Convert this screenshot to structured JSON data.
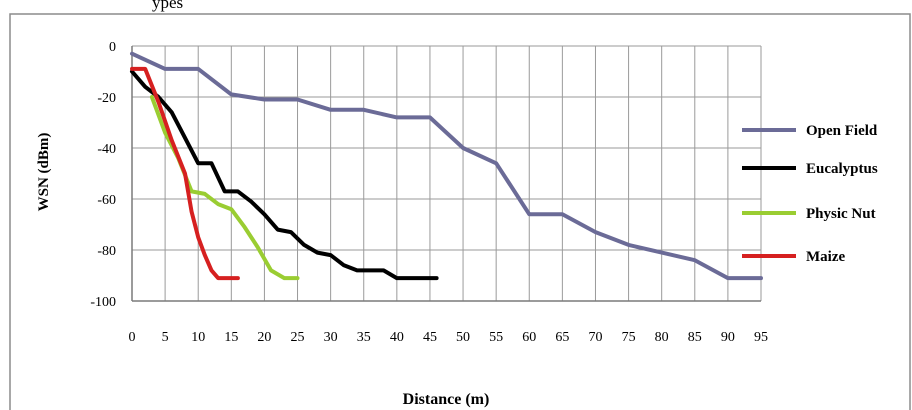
{
  "top_caption": "ypes",
  "chart_data": {
    "type": "line",
    "title": "",
    "xlabel": "Distance (m)",
    "ylabel": "WSN (dBm)",
    "xlim": [
      0,
      95
    ],
    "ylim": [
      -100,
      0
    ],
    "x_ticks": [
      0,
      5,
      10,
      15,
      20,
      25,
      30,
      35,
      40,
      45,
      50,
      55,
      60,
      65,
      70,
      75,
      80,
      85,
      90,
      95
    ],
    "y_ticks": [
      0,
      -20,
      -40,
      -60,
      -80,
      -100
    ],
    "grid": true,
    "legend_position": "right",
    "series": [
      {
        "name": "Open Field",
        "color": "#6b6b97",
        "x": [
          0,
          5,
          10,
          15,
          20,
          25,
          30,
          35,
          40,
          45,
          50,
          55,
          60,
          65,
          70,
          75,
          80,
          85,
          90,
          95
        ],
        "y": [
          -3,
          -9,
          -9,
          -19,
          -21,
          -21,
          -25,
          -25,
          -28,
          -28,
          -40,
          -46,
          -66,
          -66,
          -73,
          -78,
          -81,
          -84,
          -91,
          -91
        ]
      },
      {
        "name": "Eucalyptus",
        "color": "#000000",
        "x": [
          0,
          2,
          4,
          6,
          8,
          10,
          12,
          14,
          16,
          18,
          20,
          22,
          24,
          26,
          28,
          30,
          32,
          34,
          36,
          38,
          40,
          42,
          44,
          46
        ],
        "y": [
          -10,
          -16,
          -20,
          -26,
          -36,
          -46,
          -46,
          -57,
          -57,
          -61,
          -66,
          -72,
          -73,
          -78,
          -81,
          -82,
          -86,
          -88,
          -88,
          -88,
          -91,
          -91,
          -91,
          -91
        ]
      },
      {
        "name": "Physic Nut",
        "color": "#9acd32",
        "x": [
          3,
          5,
          7,
          9,
          11,
          13,
          15,
          17,
          19,
          21,
          23,
          25
        ],
        "y": [
          -20,
          -34,
          -44,
          -57,
          -58,
          -62,
          -64,
          -71,
          -79,
          -88,
          -91,
          -91
        ]
      },
      {
        "name": "Maize",
        "color": "#d62020",
        "x": [
          0,
          2,
          4,
          6,
          8,
          9,
          10,
          11,
          12,
          13,
          14,
          15,
          16
        ],
        "y": [
          -9,
          -9,
          -22,
          -37,
          -50,
          -65,
          -75,
          -82,
          -88,
          -91,
          -91,
          -91,
          -91
        ]
      }
    ]
  }
}
